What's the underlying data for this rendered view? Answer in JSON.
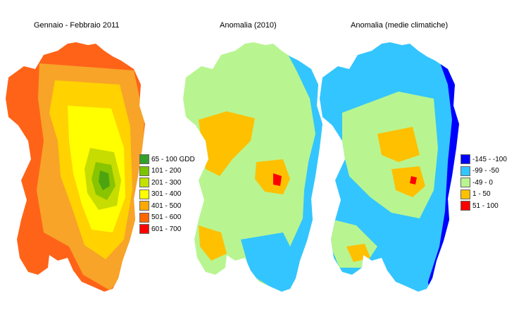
{
  "panels": [
    {
      "title": "Gennaio - Febbraio 2011",
      "base_color": "#ff6318",
      "layer_colors": [
        "#f7a428",
        "#ffd200",
        "#ffff00",
        "#c7dc00",
        "#88c400",
        "#4ca410"
      ],
      "legend_title": "",
      "legend": [
        {
          "label": "65 - 100 GDD",
          "color": "#33a02c"
        },
        {
          "label": "101 - 200",
          "color": "#7cc400"
        },
        {
          "label": "201 - 300",
          "color": "#c3e200"
        },
        {
          "label": "301 - 400",
          "color": "#ffff00"
        },
        {
          "label": "401 - 500",
          "color": "#ffaa00"
        },
        {
          "label": "501 - 600",
          "color": "#ff6600"
        },
        {
          "label": "601 - 700",
          "color": "#ff0000"
        }
      ]
    },
    {
      "title": "Anomalia (2010)",
      "base_color": "#b8f590",
      "layer_colors": [
        "#ffc000",
        "#33c5ff",
        "#ff0000"
      ],
      "legend_title": "",
      "legend": []
    },
    {
      "title": "Anomalia (medie climatiche)",
      "base_color": "#33c5ff",
      "layer_colors": [
        "#b8f590",
        "#0000ff",
        "#ffc000",
        "#ff0000"
      ],
      "legend_title": "",
      "legend": [
        {
          "label": "-145 - -100",
          "color": "#0000ff"
        },
        {
          "label": "-99 - -50",
          "color": "#33c5ff"
        },
        {
          "label": "-49 - 0",
          "color": "#b8f590"
        },
        {
          "label": "1 - 50",
          "color": "#ffc000"
        },
        {
          "label": "51 - 100",
          "color": "#ff0000"
        }
      ]
    }
  ]
}
